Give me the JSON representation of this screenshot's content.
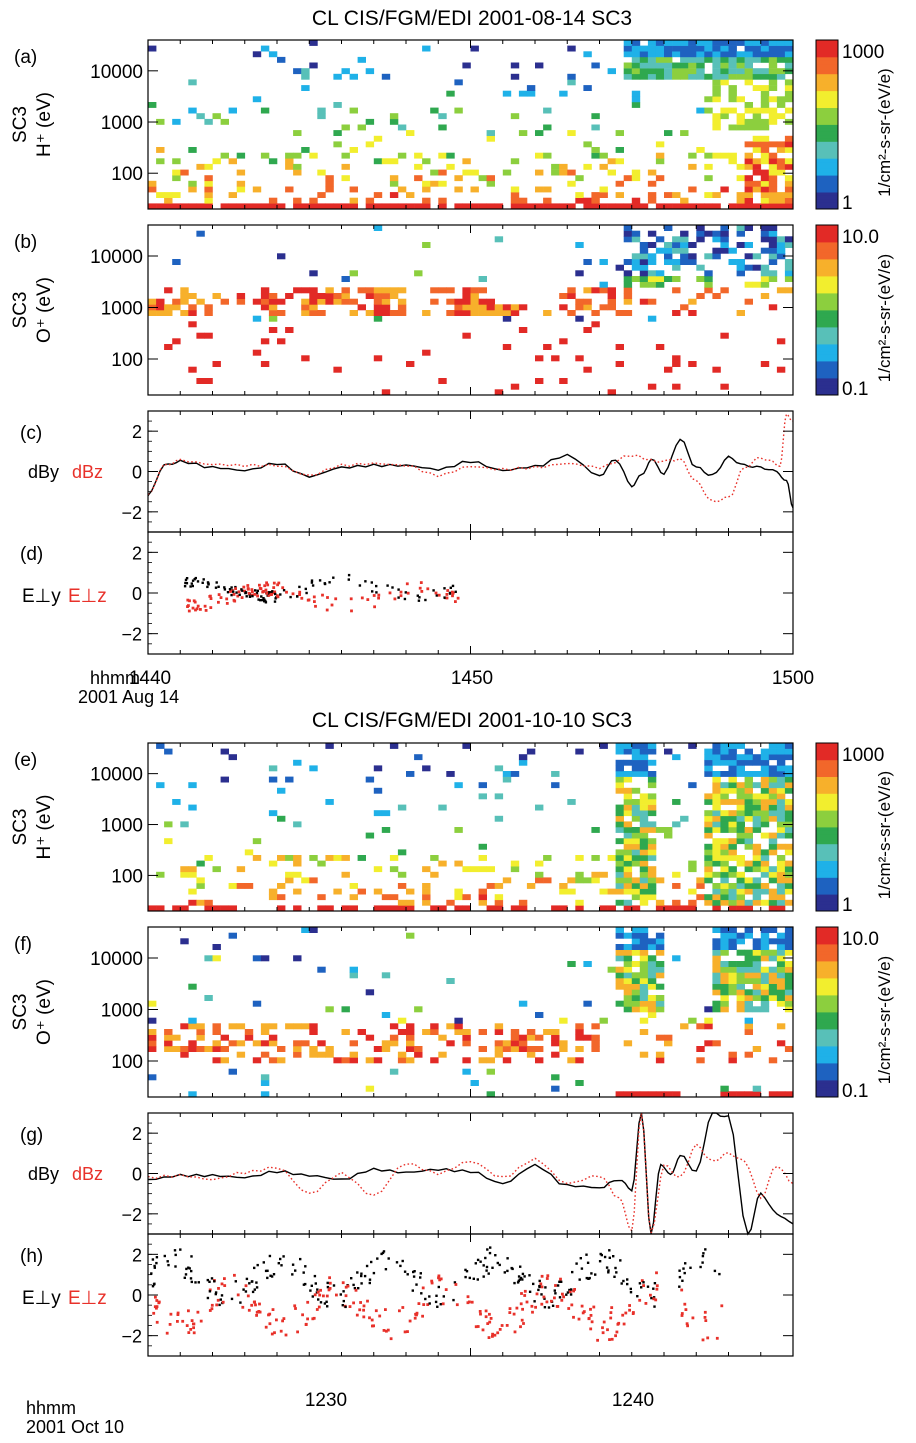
{
  "figures": [
    {
      "title": "CL CIS/FGM/EDI 2001-08-14  SC3",
      "time_label": "hhmm",
      "date_label": "2001 Aug 14",
      "time_ticks": [
        "1440",
        "1450",
        "1500"
      ]
    },
    {
      "title": "CL CIS/FGM/EDI 2001-10-10  SC3",
      "time_label": "hhmm",
      "date_label": "2001 Oct 10",
      "time_ticks": [
        "",
        "1230",
        "1240"
      ]
    }
  ],
  "colors": {
    "series_black": "#000000",
    "series_red": "#e8312a",
    "colorbar": [
      "#2b2f8f",
      "#1e62c0",
      "#1fb1e8",
      "#58c0b8",
      "#2fa84f",
      "#8ccf3e",
      "#f2ee2e",
      "#f7b02b",
      "#f2672a",
      "#e22a26"
    ]
  },
  "chart_data": [
    {
      "panel": "(a)",
      "type": "heatmap",
      "ylabel_top": "SC3",
      "ylabel": "H⁺ (eV)",
      "y_scale": "log",
      "ylim": [
        20,
        40000
      ],
      "y_ticks": [
        "10000",
        "1000",
        "100"
      ],
      "x": "time 14:40–15:00 UT",
      "colorbar": {
        "label": "1/cm²-s-sr-(eV/e)",
        "scale": "log",
        "min_label": "1",
        "max_label": "1000"
      }
    },
    {
      "panel": "(b)",
      "type": "heatmap",
      "ylabel_top": "SC3",
      "ylabel": "O⁺ (eV)",
      "y_scale": "log",
      "ylim": [
        20,
        40000
      ],
      "y_ticks": [
        "10000",
        "1000",
        "100"
      ],
      "colorbar": {
        "label": "1/cm²-s-sr-(eV/e)",
        "scale": "log",
        "min_label": "0.1",
        "max_label": "10.0"
      }
    },
    {
      "panel": "(c)",
      "type": "line",
      "legend": [
        "dBy",
        "dBz"
      ],
      "ylim": [
        -3,
        3
      ],
      "y_ticks": [
        "2",
        "0",
        "−2"
      ],
      "x_range": [
        "14:40",
        "15:00"
      ],
      "series": [
        {
          "name": "dBy",
          "style": "solid",
          "t": [
            0,
            0.5,
            1,
            2,
            3,
            4,
            5,
            6,
            7,
            8,
            9,
            10,
            11,
            12,
            13,
            14,
            14.5,
            15,
            15.3,
            15.6,
            16,
            16.5,
            17,
            17.5,
            18,
            18.5,
            19,
            19.5,
            19.8,
            20
          ],
          "values": [
            -1.2,
            0.3,
            0.5,
            0.2,
            0.05,
            0.4,
            -0.25,
            0.2,
            0.3,
            0.3,
            0.1,
            0.5,
            0.05,
            0.25,
            0.8,
            -0.2,
            0.6,
            -0.7,
            -0.2,
            0.6,
            -0.1,
            1.6,
            0.2,
            -0.2,
            0.7,
            0.3,
            0.2,
            0.0,
            -0.5,
            -1.8
          ]
        },
        {
          "name": "dBz",
          "style": "dotted",
          "t": [
            0,
            0.5,
            1,
            2,
            3,
            4,
            5,
            6,
            7,
            8,
            9,
            10,
            11,
            12,
            13,
            14,
            15,
            15.8,
            16.5,
            17,
            17.5,
            18,
            18.5,
            19,
            19.3,
            19.6,
            19.8,
            20
          ],
          "values": [
            -1.2,
            0.3,
            0.55,
            0.35,
            0.3,
            0.3,
            -0.2,
            0.3,
            0.4,
            0.3,
            -0.2,
            0.25,
            0.1,
            0.2,
            0.4,
            0.2,
            0.8,
            0.5,
            0.6,
            -0.5,
            -1.5,
            -1.3,
            0.2,
            0.7,
            0.5,
            0.3,
            2.8,
            2.5
          ]
        }
      ]
    },
    {
      "panel": "(d)",
      "type": "scatter",
      "legend": [
        "E⊥y",
        "E⊥z"
      ],
      "ylim": [
        -3,
        3
      ],
      "y_ticks": [
        "2",
        "0",
        "−2"
      ]
    },
    {
      "panel": "(e)",
      "type": "heatmap",
      "ylabel_top": "SC3",
      "ylabel": "H⁺ (eV)",
      "y_scale": "log",
      "ylim": [
        20,
        40000
      ],
      "y_ticks": [
        "10000",
        "1000",
        "100"
      ],
      "colorbar": {
        "label": "1/cm²-s-sr-(eV/e)",
        "scale": "log",
        "min_label": "1",
        "max_label": "1000"
      }
    },
    {
      "panel": "(f)",
      "type": "heatmap",
      "ylabel_top": "SC3",
      "ylabel": "O⁺ (eV)",
      "y_scale": "log",
      "ylim": [
        20,
        40000
      ],
      "y_ticks": [
        "10000",
        "1000",
        "100"
      ],
      "colorbar": {
        "label": "1/cm²-s-sr-(eV/e)",
        "scale": "log",
        "min_label": "0.1",
        "max_label": "10.0"
      }
    },
    {
      "panel": "(g)",
      "type": "line",
      "legend": [
        "dBy",
        "dBz"
      ],
      "ylim": [
        -3,
        3
      ],
      "y_ticks": [
        "2",
        "0",
        "−2"
      ],
      "x_range": [
        "12:25",
        "12:45"
      ],
      "series": [
        {
          "name": "dBy",
          "style": "solid",
          "t": [
            0,
            1,
            2,
            3,
            4,
            5,
            6,
            7,
            8,
            9,
            10,
            11,
            12,
            13,
            14,
            14.6,
            15,
            15.3,
            15.6,
            15.9,
            16.2,
            16.5,
            17,
            17.5,
            18,
            18.6,
            19,
            19.5,
            20
          ],
          "values": [
            -0.3,
            -0.1,
            -0.1,
            -0.2,
            0.1,
            -0.1,
            -0.3,
            0.2,
            0.05,
            0.2,
            0.1,
            -0.5,
            0.4,
            -0.6,
            -0.7,
            -0.3,
            -0.8,
            3.0,
            -3.0,
            0.5,
            -0.1,
            0.9,
            0.1,
            3.0,
            2.8,
            -3.0,
            -1.0,
            -2.0,
            -2.5
          ]
        },
        {
          "name": "dBz",
          "style": "dotted",
          "t": [
            0,
            1,
            2,
            3,
            4,
            5,
            6,
            7,
            8,
            9,
            10,
            11,
            12,
            13,
            14,
            14.6,
            15,
            15.3,
            15.6,
            16,
            16.5,
            17,
            17.5,
            18,
            18.5,
            19,
            19.5,
            20
          ],
          "values": [
            -0.2,
            -0.1,
            -0.3,
            0.05,
            0.3,
            -1.0,
            0.0,
            -1.1,
            0.5,
            0.0,
            0.6,
            -0.2,
            0.7,
            -0.5,
            -0.1,
            -1.2,
            -2.8,
            3.0,
            -3.0,
            0.4,
            -0.2,
            1.4,
            0.6,
            1.0,
            0.6,
            -1.2,
            0.4,
            -0.5
          ]
        }
      ]
    },
    {
      "panel": "(h)",
      "type": "scatter",
      "legend": [
        "E⊥y",
        "E⊥z"
      ],
      "ylim": [
        -3,
        3
      ],
      "y_ticks": [
        "2",
        "0",
        "−2"
      ]
    }
  ]
}
